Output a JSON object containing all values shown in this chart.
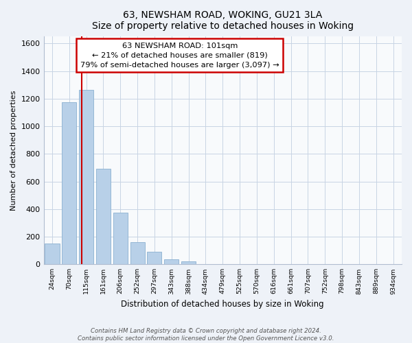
{
  "title": "63, NEWSHAM ROAD, WOKING, GU21 3LA",
  "subtitle": "Size of property relative to detached houses in Woking",
  "xlabel": "Distribution of detached houses by size in Woking",
  "ylabel": "Number of detached properties",
  "bar_labels": [
    "24sqm",
    "70sqm",
    "115sqm",
    "161sqm",
    "206sqm",
    "252sqm",
    "297sqm",
    "343sqm",
    "388sqm",
    "434sqm",
    "479sqm",
    "525sqm",
    "570sqm",
    "616sqm",
    "661sqm",
    "707sqm",
    "752sqm",
    "798sqm",
    "843sqm",
    "889sqm",
    "934sqm"
  ],
  "bar_values": [
    150,
    1175,
    1265,
    690,
    375,
    160,
    90,
    35,
    20,
    0,
    0,
    0,
    0,
    0,
    0,
    0,
    0,
    0,
    0,
    0,
    0
  ],
  "bar_color": "#b8d0e8",
  "bar_edge_color": "#8ab0d0",
  "ylim": [
    0,
    1650
  ],
  "yticks": [
    0,
    200,
    400,
    600,
    800,
    1000,
    1200,
    1400,
    1600
  ],
  "marker_line_color": "#cc0000",
  "annotation_line1": "63 NEWSHAM ROAD: 101sqm",
  "annotation_line2": "← 21% of detached houses are smaller (819)",
  "annotation_line3": "79% of semi-detached houses are larger (3,097) →",
  "box_facecolor": "#ffffff",
  "box_edgecolor": "#cc0000",
  "footer1": "Contains HM Land Registry data © Crown copyright and database right 2024.",
  "footer2": "Contains public sector information licensed under the Open Government Licence v3.0.",
  "background_color": "#eef2f8",
  "plot_bg_color": "#f8fafc",
  "grid_color": "#c8d4e4"
}
